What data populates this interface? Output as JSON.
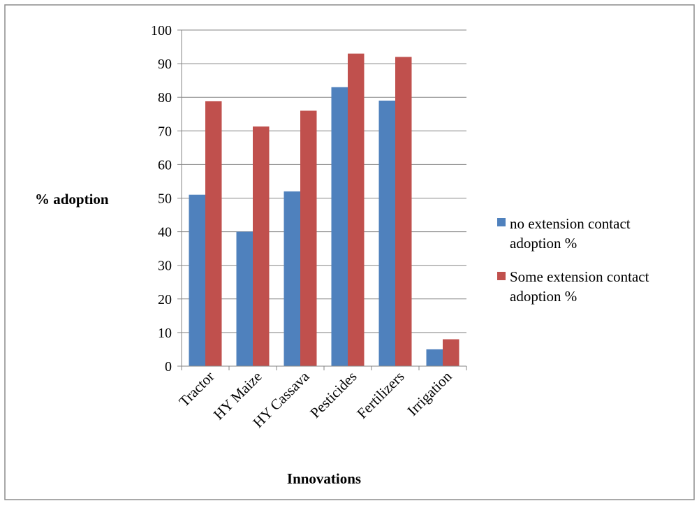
{
  "chart_data": {
    "type": "bar",
    "title": "",
    "xlabel": "Innovations",
    "ylabel": "% adoption",
    "ylim": [
      0,
      100
    ],
    "yticks": [
      0,
      10,
      20,
      30,
      40,
      50,
      60,
      70,
      80,
      90,
      100
    ],
    "grid": "horizontal",
    "legend_position": "right",
    "categories": [
      "Tractor",
      "HY Maize",
      "HY Cassava",
      "Pesticides",
      "Fertilizers",
      "Irrigation"
    ],
    "series": [
      {
        "name": "no extension contact adoption %",
        "legend_lines": [
          "no extension contact",
          "adoption %"
        ],
        "color": "#4f81bd",
        "values": [
          51,
          40,
          52,
          83,
          79,
          5
        ]
      },
      {
        "name": "Some extension contact adoption %",
        "legend_lines": [
          "Some extension contact",
          "adoption %"
        ],
        "color": "#c0504d",
        "values": [
          78.8,
          71.3,
          76,
          93,
          92,
          8
        ]
      }
    ]
  }
}
